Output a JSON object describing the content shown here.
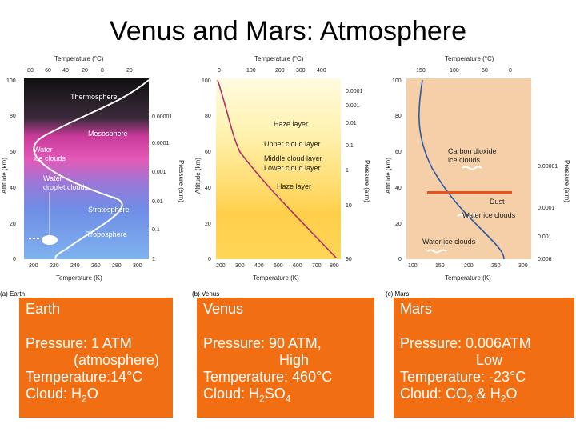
{
  "title": "Venus and Mars: Atmosphere",
  "earth": {
    "caption": "(a) Earth",
    "top_axis": "Temperature (°C)",
    "top_ticks": [
      "−80",
      "−60",
      "−40",
      "−20",
      "0",
      "20"
    ],
    "bottom_axis": "Temperature (K)",
    "bottom_ticks": [
      "200",
      "220",
      "240",
      "260",
      "280",
      "300"
    ],
    "left_axis": "Altitude (km)",
    "left_ticks": [
      "100",
      "80",
      "60",
      "40",
      "20",
      "0"
    ],
    "right_axis": "Pressure (atm)",
    "right_ticks": [
      "0.00001",
      "0.0001",
      "0.001",
      "0.01",
      "0.1",
      "1"
    ],
    "labels": [
      "Thermosphere",
      "Mesosphere",
      "Water",
      "ice clouds",
      "Water",
      "droplet clouds",
      "Stratosphere",
      "Troposphere"
    ]
  },
  "venus": {
    "caption": "(b) Venus",
    "top_axis": "Temperature (°C)",
    "top_ticks": [
      "0",
      "100",
      "200",
      "300",
      "400"
    ],
    "bottom_axis": "Temperature (K)",
    "bottom_ticks": [
      "200",
      "300",
      "400",
      "500",
      "600",
      "700",
      "800"
    ],
    "left_axis": "Altitude (km)",
    "left_ticks": [
      "100",
      "80",
      "60",
      "40",
      "20",
      "0"
    ],
    "right_axis": "Pressure (atm)",
    "right_ticks": [
      "0.0001",
      "0.001",
      "0.01",
      "0.1",
      "1",
      "10",
      "90"
    ],
    "labels": [
      "Haze layer",
      "Upper cloud layer",
      "Middle cloud layer",
      "Lower cloud layer",
      "Haze layer"
    ]
  },
  "mars": {
    "caption": "(c) Mars",
    "top_axis": "Temperature (°C)",
    "top_ticks": [
      "−150",
      "−100",
      "−50",
      "0"
    ],
    "bottom_axis": "Temperature (K)",
    "bottom_ticks": [
      "100",
      "150",
      "200",
      "250",
      "300"
    ],
    "left_axis": "Altitude (km)",
    "left_ticks": [
      "100",
      "80",
      "60",
      "40",
      "20",
      "0"
    ],
    "right_axis": "Pressure (atm)",
    "right_ticks": [
      "0.00001",
      "0.0001",
      "0.001",
      "0.006"
    ],
    "labels": [
      "Carbon dioxide",
      "ice clouds",
      "Dust",
      "Water ice clouds",
      "Water ice clouds"
    ]
  },
  "boxes": {
    "color": "#f26e12",
    "earth": {
      "name": "Earth",
      "pressure": "Pressure: 1 ATM",
      "pressure_note": "(atmosphere)",
      "temperature": "Temperature:14°C",
      "cloud_prefix": "Cloud: H",
      "cloud_sub": "2",
      "cloud_suffix": "O"
    },
    "venus": {
      "name": "Venus",
      "pressure": "Pressure: 90 ATM,",
      "pressure_note": "High",
      "temperature": "Temperature: 460°C",
      "cloud_prefix": "Cloud: H",
      "cloud_sub": "2",
      "cloud_mid": "SO",
      "cloud_sub2": "4"
    },
    "mars": {
      "name": "Mars",
      "pressure": "Pressure: 0.006ATM",
      "pressure_note": "Low",
      "temperature": "Temperature: -23°C",
      "cloud_prefix": "Cloud: CO",
      "cloud_sub": "2",
      "cloud_mid": " & H",
      "cloud_sub2": "2",
      "cloud_suffix": "O"
    }
  }
}
